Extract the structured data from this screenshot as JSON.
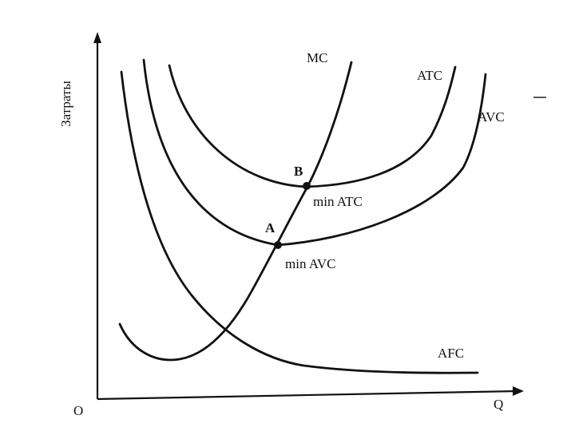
{
  "axes": {
    "y_label": "Затраты",
    "x_label": "Q",
    "origin_label": "O"
  },
  "curves": {
    "mc": "MC",
    "atc": "ATC",
    "avc": "AVC",
    "afc": "AFC"
  },
  "points": {
    "b": {
      "label": "B",
      "caption": "min ATC"
    },
    "a": {
      "label": "A",
      "caption": "min AVC"
    }
  }
}
